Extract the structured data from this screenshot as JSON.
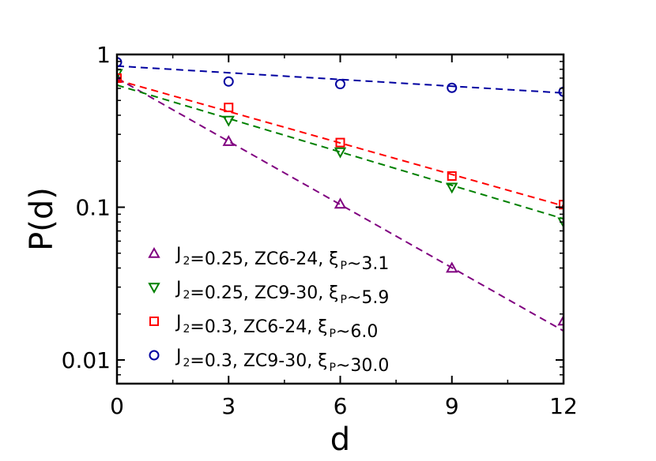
{
  "chart_data": {
    "type": "scatter",
    "xlabel": "d",
    "ylabel": "P(d)",
    "x_scale": "linear",
    "y_scale": "log",
    "xlim": [
      0,
      12
    ],
    "ylim": [
      0.007,
      1
    ],
    "xticks": [
      0,
      3,
      6,
      9,
      12
    ],
    "xtick_labels": [
      "0",
      "3",
      "6",
      "9",
      "12"
    ],
    "yticks": [
      0.01,
      0.1,
      1
    ],
    "ytick_labels": [
      "0.01",
      "0.1",
      "1"
    ],
    "grid": false,
    "legend_position": "bottom-left",
    "series": [
      {
        "marker": "triangle-up",
        "color": "#800080",
        "legend": {
          "pre": "J",
          "sub": "2",
          "mid": "=0.25, ZC6-24, ξ",
          "sub2": "P",
          "post": "~3.1"
        },
        "x": [
          0,
          3,
          6,
          9,
          12
        ],
        "y": [
          0.7,
          0.27,
          0.105,
          0.04,
          0.018
        ],
        "fit": {
          "x": [
            0,
            12
          ],
          "y": [
            0.7,
            0.0155
          ]
        }
      },
      {
        "marker": "triangle-down",
        "color": "#008000",
        "legend": {
          "pre": "J",
          "sub": "2",
          "mid": "=0.25, ZC9-30, ξ",
          "sub2": "P",
          "post": "~5.9"
        },
        "x": [
          0,
          3,
          6,
          9,
          12
        ],
        "y": [
          0.75,
          0.37,
          0.23,
          0.135,
          0.08
        ],
        "fit": {
          "x": [
            0,
            12
          ],
          "y": [
            0.63,
            0.084
          ]
        }
      },
      {
        "marker": "square",
        "color": "#ff0000",
        "legend": {
          "pre": "J",
          "sub": "2",
          "mid": "=0.3,   ZC6-24, ξ",
          "sub2": "P",
          "post": "~6.0"
        },
        "x": [
          0,
          3,
          6,
          9,
          12
        ],
        "y": [
          0.7,
          0.45,
          0.265,
          0.16,
          0.104
        ],
        "fit": {
          "x": [
            0,
            12
          ],
          "y": [
            0.68,
            0.102
          ]
        }
      },
      {
        "marker": "circle",
        "color": "#0000a0",
        "legend": {
          "pre": "J",
          "sub": "2",
          "mid": "=0.3,   ZC9-30, ξ",
          "sub2": "P",
          "post": "~30.0"
        },
        "x": [
          0,
          3,
          6,
          9,
          12
        ],
        "y": [
          0.89,
          0.665,
          0.64,
          0.605,
          0.57
        ],
        "fit": {
          "x": [
            0,
            12
          ],
          "y": [
            0.84,
            0.56
          ]
        }
      }
    ]
  }
}
